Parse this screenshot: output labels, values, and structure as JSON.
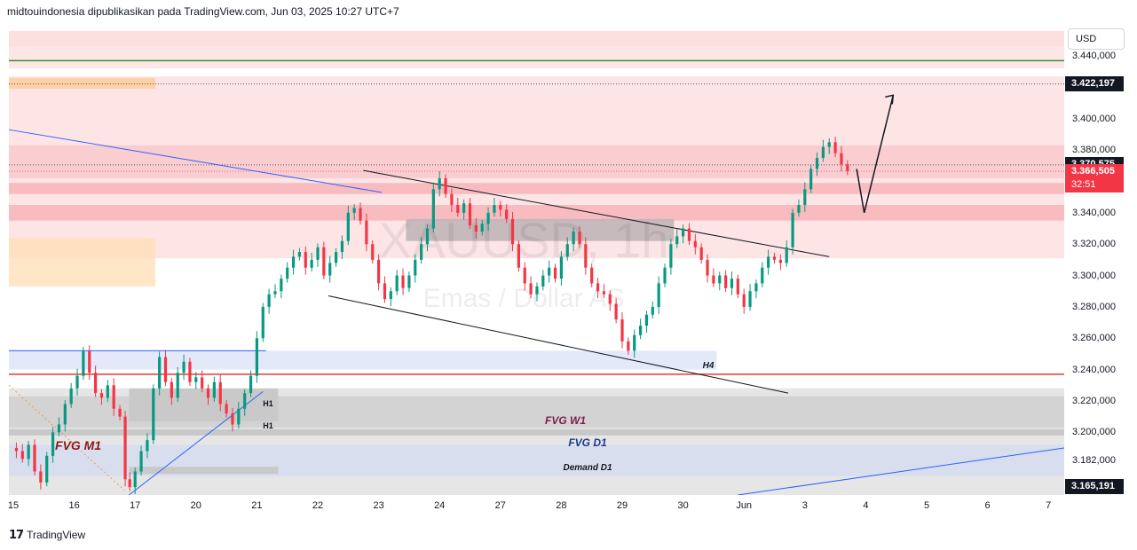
{
  "header": {
    "title": "midtouindonesia dipublikasikan pada TradingView.com, Jun 03, 2025 10:27 UTC+7"
  },
  "watermark": {
    "symbol": "XAUUSD, 1h",
    "description": "Emas / Dollar AS"
  },
  "currency": "USD",
  "footer": {
    "brand": "TradingView"
  },
  "colors": {
    "up": "#089981",
    "down": "#f23645",
    "green_line": "#388e3c",
    "red_line": "#e53935",
    "blue_line": "#2962ff"
  },
  "chart_data": {
    "type": "candlestick",
    "symbol": "XAUUSD",
    "interval": "1h",
    "ylim": [
      3160,
      3461
    ],
    "y_ticks": [
      {
        "value": 3440,
        "label": "3.440,000"
      },
      {
        "value": 3400,
        "label": "3.400,000"
      },
      {
        "value": 3380,
        "label": "3.380,000"
      },
      {
        "value": 3340,
        "label": "3.340,000"
      },
      {
        "value": 3320,
        "label": "3.320,000"
      },
      {
        "value": 3300,
        "label": "3.300,000"
      },
      {
        "value": 3280,
        "label": "3.280,000"
      },
      {
        "value": 3260,
        "label": "3.260,000"
      },
      {
        "value": 3240,
        "label": "3.240,000"
      },
      {
        "value": 3220,
        "label": "3.220,000"
      },
      {
        "value": 3200,
        "label": "3.200,000"
      },
      {
        "value": 3182,
        "label": "3.182,000"
      }
    ],
    "price_labels": [
      {
        "value": 3422.197,
        "label": "3.422,197",
        "bg": "#131722"
      },
      {
        "value": 3370.575,
        "label": "3.370,575",
        "bg": "#131722"
      },
      {
        "value": 3366.505,
        "label": "3.366,505",
        "bg": "#f23645",
        "sub": "32:51"
      },
      {
        "value": 3165.191,
        "label": "3.165,191",
        "bg": "#131722"
      }
    ],
    "x_ticks": [
      {
        "i": 0,
        "label": "15"
      },
      {
        "i": 4,
        "label": "16"
      },
      {
        "i": 8,
        "label": "17"
      },
      {
        "i": 12,
        "label": "20"
      },
      {
        "i": 16,
        "label": "21"
      },
      {
        "i": 20,
        "label": "22"
      },
      {
        "i": 24,
        "label": "23"
      },
      {
        "i": 28,
        "label": "24"
      },
      {
        "i": 32,
        "label": "27"
      },
      {
        "i": 36,
        "label": "28"
      },
      {
        "i": 40,
        "label": "29"
      },
      {
        "i": 44,
        "label": "30"
      },
      {
        "i": 48,
        "label": "Jun"
      },
      {
        "i": 52,
        "label": "3"
      },
      {
        "i": 56,
        "label": "4"
      },
      {
        "i": 60,
        "label": "5"
      },
      {
        "i": 64,
        "label": "6"
      },
      {
        "i": 68,
        "label": "7"
      }
    ],
    "price_path": [
      [
        0,
        3190
      ],
      [
        0.4,
        3188
      ],
      [
        0.8,
        3183
      ],
      [
        1.2,
        3192
      ],
      [
        1.6,
        3175
      ],
      [
        2.0,
        3168
      ],
      [
        2.4,
        3185
      ],
      [
        2.8,
        3200
      ],
      [
        3.2,
        3205
      ],
      [
        3.6,
        3218
      ],
      [
        4.0,
        3228
      ],
      [
        4.4,
        3236
      ],
      [
        4.8,
        3252
      ],
      [
        5.2,
        3238
      ],
      [
        5.6,
        3225
      ],
      [
        6.0,
        3222
      ],
      [
        6.4,
        3230
      ],
      [
        6.8,
        3215
      ],
      [
        7.2,
        3210
      ],
      [
        7.5,
        3170
      ],
      [
        7.8,
        3165
      ],
      [
        8.2,
        3175
      ],
      [
        8.6,
        3188
      ],
      [
        9.0,
        3195
      ],
      [
        9.4,
        3228
      ],
      [
        9.8,
        3248
      ],
      [
        10.2,
        3232
      ],
      [
        10.6,
        3222
      ],
      [
        11.0,
        3238
      ],
      [
        11.4,
        3245
      ],
      [
        11.8,
        3232
      ],
      [
        12.2,
        3235
      ],
      [
        12.6,
        3228
      ],
      [
        13.0,
        3222
      ],
      [
        13.4,
        3232
      ],
      [
        13.8,
        3218
      ],
      [
        14.2,
        3212
      ],
      [
        14.6,
        3205
      ],
      [
        15.0,
        3215
      ],
      [
        15.4,
        3225
      ],
      [
        15.8,
        3236
      ],
      [
        16.2,
        3260
      ],
      [
        16.6,
        3280
      ],
      [
        17.0,
        3288
      ],
      [
        17.4,
        3290
      ],
      [
        17.8,
        3298
      ],
      [
        18.2,
        3305
      ],
      [
        18.6,
        3312
      ],
      [
        19.0,
        3315
      ],
      [
        19.4,
        3305
      ],
      [
        19.8,
        3310
      ],
      [
        20.2,
        3318
      ],
      [
        20.6,
        3300
      ],
      [
        21.0,
        3308
      ],
      [
        21.4,
        3315
      ],
      [
        21.8,
        3322
      ],
      [
        22.2,
        3340
      ],
      [
        22.6,
        3343
      ],
      [
        23.0,
        3335
      ],
      [
        23.4,
        3320
      ],
      [
        23.8,
        3310
      ],
      [
        24.2,
        3295
      ],
      [
        24.6,
        3285
      ],
      [
        25.0,
        3290
      ],
      [
        25.4,
        3300
      ],
      [
        25.8,
        3292
      ],
      [
        26.2,
        3300
      ],
      [
        26.6,
        3310
      ],
      [
        27.0,
        3320
      ],
      [
        27.4,
        3330
      ],
      [
        27.8,
        3355
      ],
      [
        28.2,
        3362
      ],
      [
        28.6,
        3352
      ],
      [
        29.0,
        3345
      ],
      [
        29.4,
        3340
      ],
      [
        29.8,
        3346
      ],
      [
        30.2,
        3332
      ],
      [
        30.6,
        3328
      ],
      [
        31.0,
        3333
      ],
      [
        31.4,
        3340
      ],
      [
        31.8,
        3345
      ],
      [
        32.2,
        3342
      ],
      [
        32.6,
        3336
      ],
      [
        33.0,
        3320
      ],
      [
        33.4,
        3305
      ],
      [
        33.8,
        3295
      ],
      [
        34.2,
        3288
      ],
      [
        34.6,
        3293
      ],
      [
        35.0,
        3300
      ],
      [
        35.4,
        3305
      ],
      [
        35.8,
        3298
      ],
      [
        36.2,
        3312
      ],
      [
        36.6,
        3320
      ],
      [
        37.0,
        3328
      ],
      [
        37.4,
        3320
      ],
      [
        37.8,
        3305
      ],
      [
        38.2,
        3295
      ],
      [
        38.6,
        3290
      ],
      [
        39.0,
        3288
      ],
      [
        39.4,
        3282
      ],
      [
        39.8,
        3272
      ],
      [
        40.2,
        3258
      ],
      [
        40.6,
        3252
      ],
      [
        41.0,
        3262
      ],
      [
        41.4,
        3268
      ],
      [
        41.8,
        3275
      ],
      [
        42.2,
        3280
      ],
      [
        42.6,
        3295
      ],
      [
        43.0,
        3305
      ],
      [
        43.4,
        3320
      ],
      [
        43.8,
        3325
      ],
      [
        44.2,
        3330
      ],
      [
        44.6,
        3322
      ],
      [
        45.0,
        3318
      ],
      [
        45.4,
        3310
      ],
      [
        45.8,
        3300
      ],
      [
        46.2,
        3295
      ],
      [
        46.6,
        3300
      ],
      [
        47.0,
        3292
      ],
      [
        47.4,
        3298
      ],
      [
        47.8,
        3288
      ],
      [
        48.2,
        3280
      ],
      [
        48.6,
        3290
      ],
      [
        49.0,
        3295
      ],
      [
        49.4,
        3305
      ],
      [
        49.8,
        3312
      ],
      [
        50.2,
        3310
      ],
      [
        50.6,
        3308
      ],
      [
        51.0,
        3318
      ],
      [
        51.4,
        3340
      ],
      [
        51.8,
        3345
      ],
      [
        52.2,
        3355
      ],
      [
        52.6,
        3368
      ],
      [
        53.0,
        3375
      ],
      [
        53.4,
        3382
      ],
      [
        53.8,
        3385
      ],
      [
        54.2,
        3378
      ],
      [
        54.6,
        3371
      ],
      [
        55.0,
        3366.5
      ]
    ],
    "projection": [
      [
        55.4,
        3368
      ],
      [
        55.9,
        3340
      ],
      [
        57.8,
        3415
      ]
    ],
    "zones": [
      {
        "name": "zone-top",
        "y_top": 3456,
        "y_bottom": 3446,
        "color": "#fbdada"
      },
      {
        "name": "zone-top2",
        "y_top": 3446,
        "y_bottom": 3432,
        "color": "#fde2e2"
      },
      {
        "name": "zone-main",
        "y_top": 3427,
        "y_bottom": 3311,
        "color": "#fde0e2"
      },
      {
        "name": "zone-mid",
        "y_top": 3383,
        "y_bottom": 3362,
        "color": "#f9c9cc"
      },
      {
        "name": "zone-mid2",
        "y_top": 3359,
        "y_bottom": 3352,
        "color": "#f7b4b9"
      },
      {
        "name": "zone-mid3",
        "y_top": 3345,
        "y_bottom": 3335,
        "color": "#f7b4b9"
      },
      {
        "name": "zone-gray",
        "y_top": 3336,
        "y_bottom": 3322,
        "color": "#bdb3b4"
      }
    ],
    "levels": [
      {
        "name": "green-level",
        "value": 3437,
        "color": "#388e3c"
      },
      {
        "name": "red-level",
        "value": 3237,
        "color": "#e53935"
      }
    ],
    "annotations": [
      "FVG M1",
      "FVG W1",
      "FVG D1",
      "Demand D1",
      "H4",
      "H1",
      "H1"
    ]
  }
}
